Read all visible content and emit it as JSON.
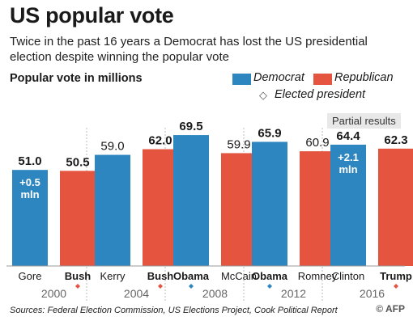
{
  "header": {
    "title": "US popular vote",
    "subtitle": "Twice in the past 16 years a Democrat has lost the US presidential election despite winning the popular vote"
  },
  "legend": {
    "democrat": "Democrat",
    "republican": "Republican",
    "elected": "Elected president",
    "elected_symbol": "◇"
  },
  "annotation": {
    "partial_results": "Partial results"
  },
  "footer": {
    "source": "Sources: Federal Election Commission, US Elections Project, Cook Political Report",
    "credit": "© AFP"
  },
  "colors": {
    "democrat": "#2e86c1",
    "republican": "#e4543f",
    "diamond": "#e4543f",
    "diamond_dem": "#2e86c1"
  },
  "chart_data": {
    "type": "bar",
    "ylabel": "Popular vote in millions",
    "ylim": [
      0,
      75
    ],
    "categories": [
      "2000",
      "2004",
      "2008",
      "2012",
      "2016"
    ],
    "series": [
      {
        "name": "Democrat",
        "candidates": [
          "Gore",
          "Kerry",
          "Obama",
          "Obama",
          "Clinton"
        ],
        "values": [
          51.0,
          59.0,
          69.5,
          65.9,
          64.4
        ],
        "value_labels": [
          "51.0",
          "59.0",
          "69.5",
          "65.9",
          "64.4"
        ],
        "elected": [
          false,
          false,
          true,
          true,
          false
        ]
      },
      {
        "name": "Republican",
        "candidates": [
          "Bush",
          "Bush",
          "McCain",
          "Romney",
          "Trump"
        ],
        "values": [
          50.5,
          62.0,
          59.9,
          60.9,
          62.3
        ],
        "value_labels": [
          "50.5",
          "62.0",
          "59.9",
          "60.9",
          "62.3"
        ],
        "elected": [
          true,
          true,
          false,
          false,
          true
        ]
      }
    ],
    "bar_annotations": [
      {
        "year_index": 0,
        "series": "Democrat",
        "text": "+0.5 mln"
      },
      {
        "year_index": 4,
        "series": "Democrat",
        "text": "+2.1 mln"
      }
    ]
  }
}
